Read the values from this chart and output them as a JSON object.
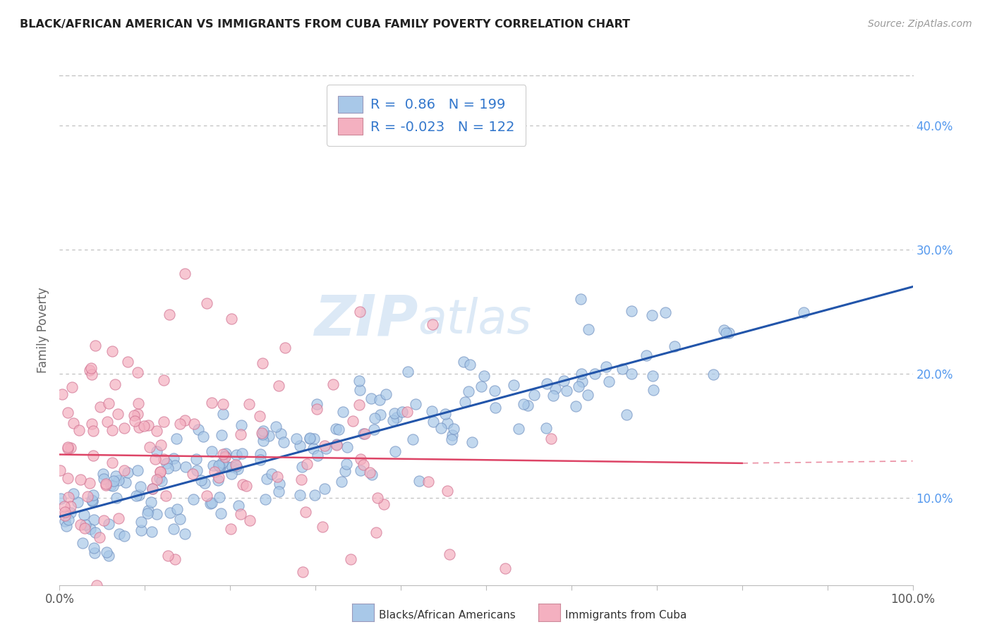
{
  "title": "BLACK/AFRICAN AMERICAN VS IMMIGRANTS FROM CUBA FAMILY POVERTY CORRELATION CHART",
  "source": "Source: ZipAtlas.com",
  "ylabel": "Family Poverty",
  "xlabel": "",
  "xlim": [
    0,
    100
  ],
  "ylim": [
    3,
    44
  ],
  "yticks": [
    10,
    20,
    30,
    40
  ],
  "xticks": [
    0,
    10,
    20,
    30,
    40,
    50,
    60,
    70,
    80,
    90,
    100
  ],
  "blue_R": 0.86,
  "blue_N": 199,
  "pink_R": -0.023,
  "pink_N": 122,
  "blue_color": "#a8c8e8",
  "pink_color": "#f4b0c0",
  "blue_edge_color": "#7090c0",
  "pink_edge_color": "#d07090",
  "blue_line_color": "#2255aa",
  "pink_line_color": "#dd4466",
  "legend_label_blue": "Blacks/African Americans",
  "legend_label_pink": "Immigrants from Cuba",
  "watermark_zip": "ZIP",
  "watermark_atlas": "atlas",
  "blue_trend_x": [
    0,
    100
  ],
  "blue_trend_y": [
    8.5,
    27.0
  ],
  "pink_trend_x": [
    0,
    80
  ],
  "pink_trend_y": [
    13.5,
    12.8
  ],
  "background_color": "#ffffff",
  "grid_color": "#cccccc",
  "ytick_color": "#5599ee",
  "xtick_label_color": "#555555"
}
